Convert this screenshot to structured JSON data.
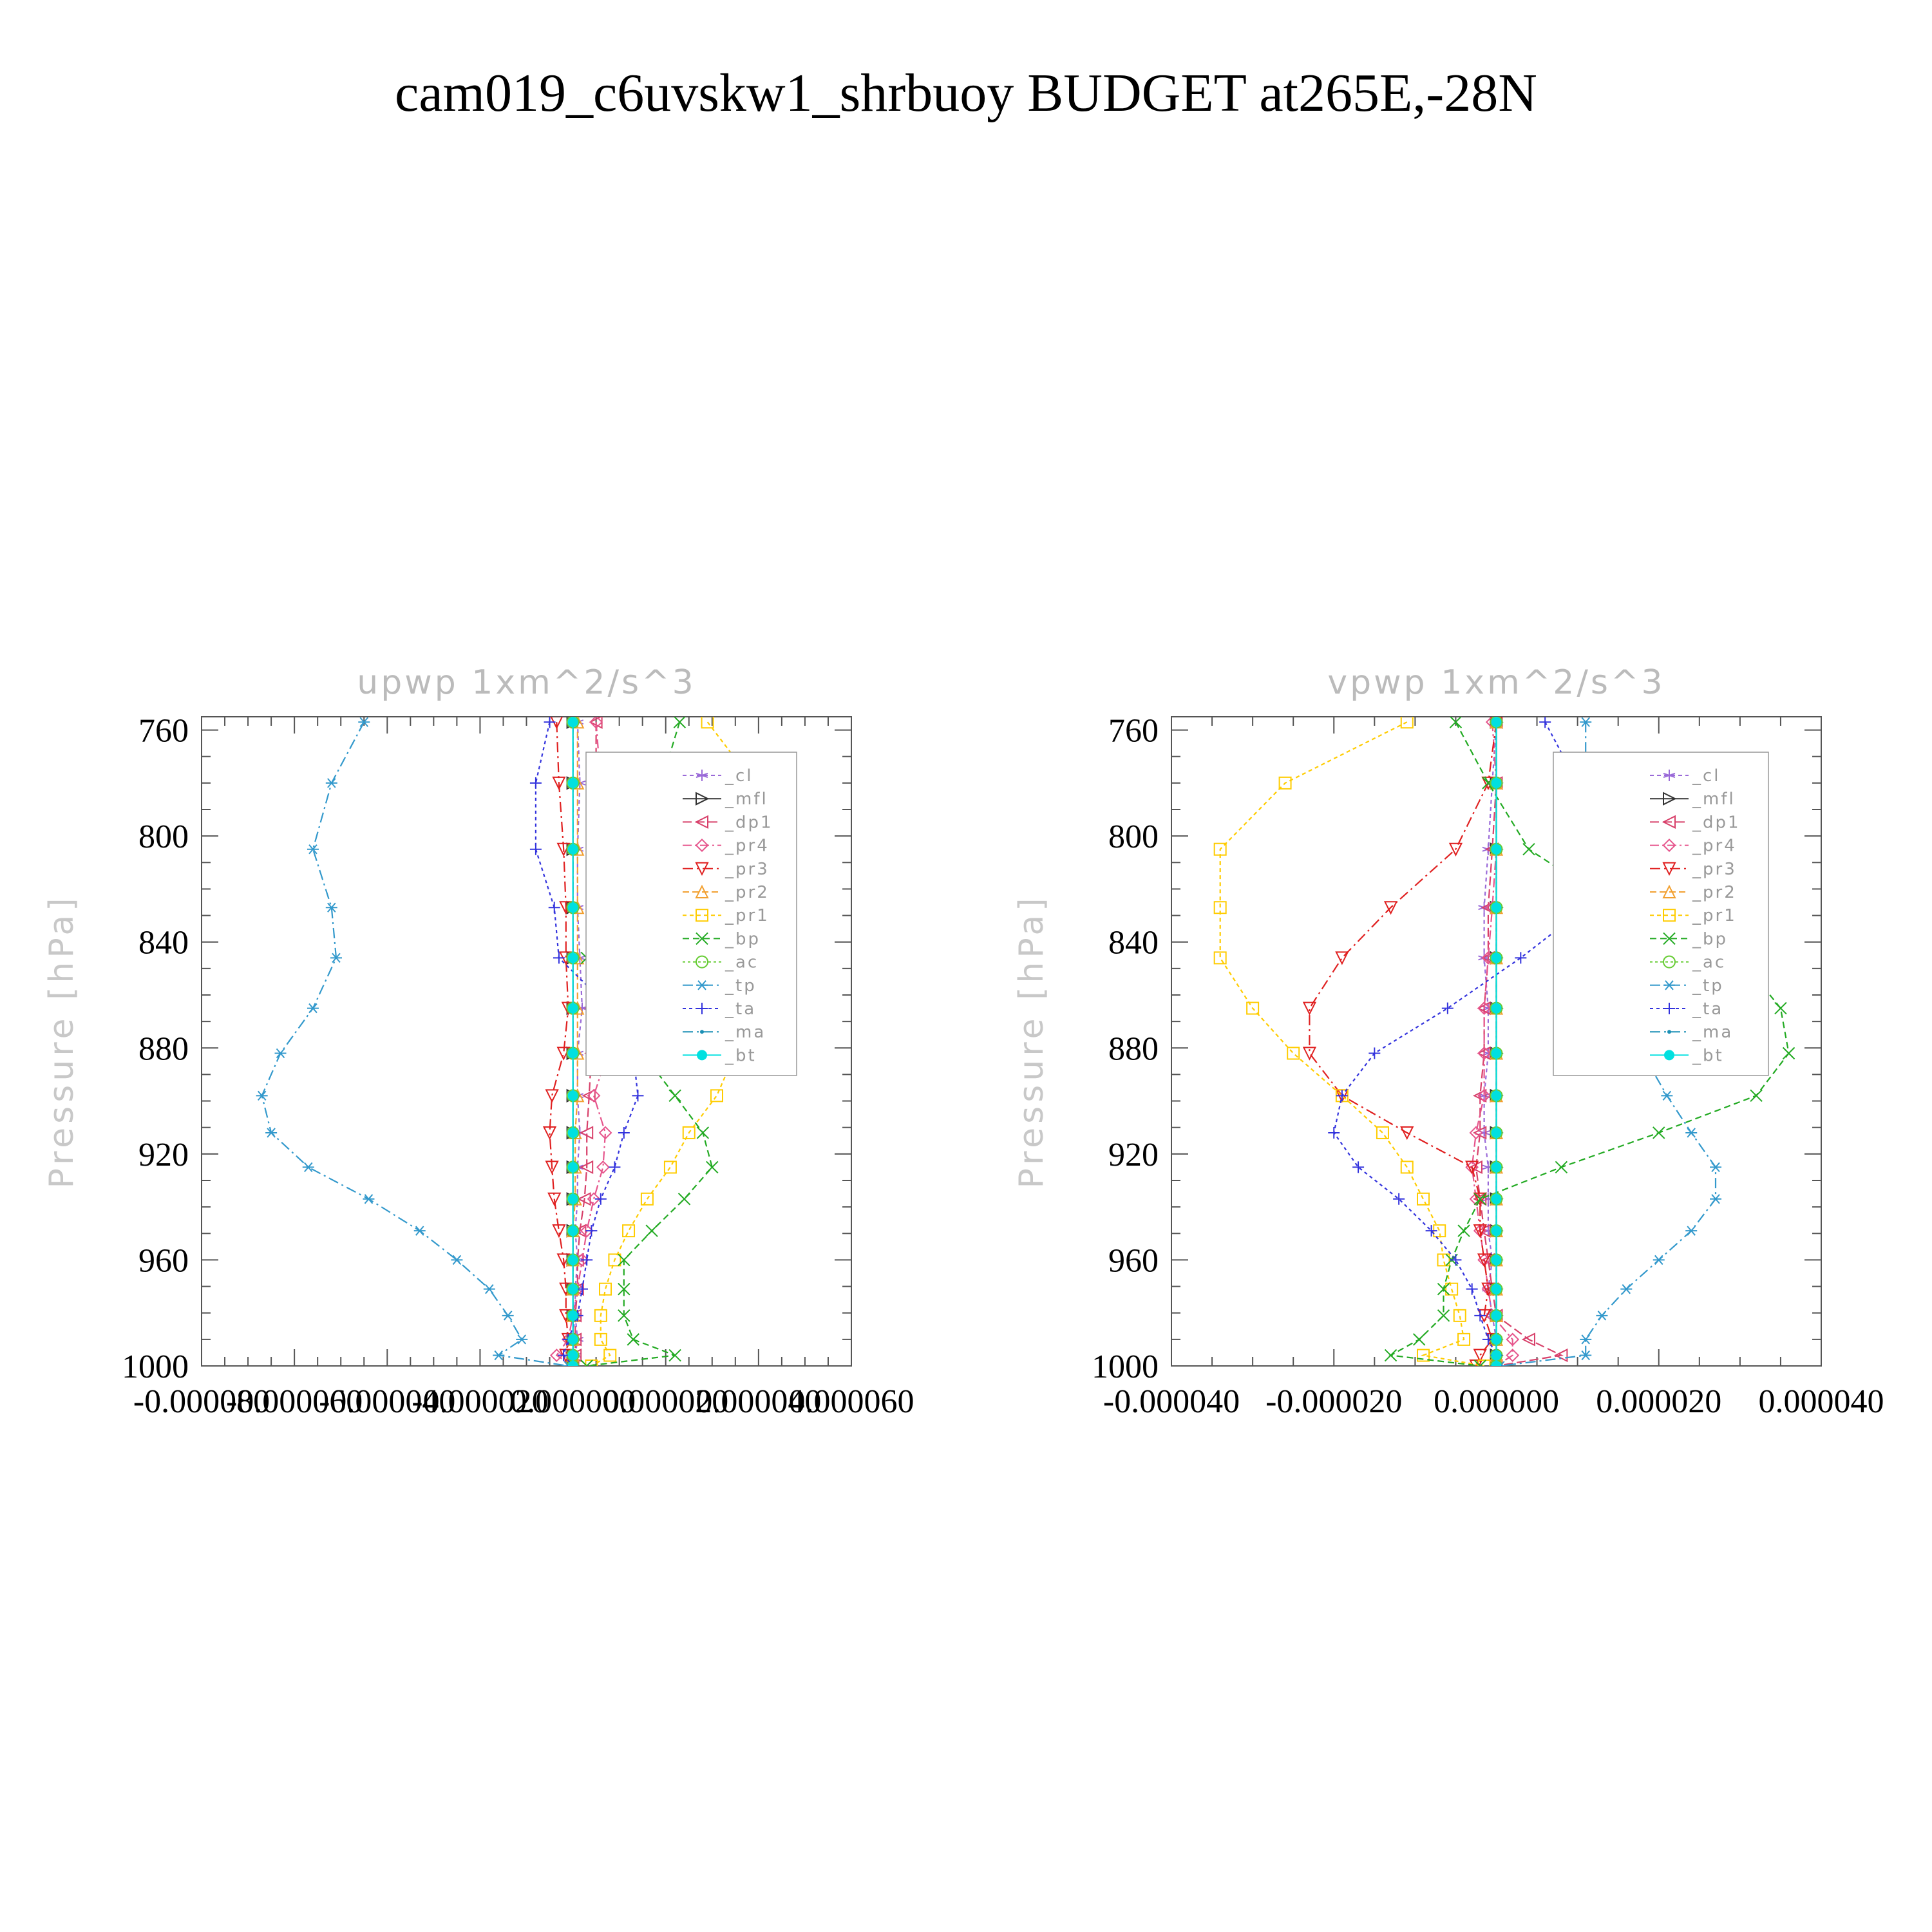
{
  "figure": {
    "title": "cam019_c6uvskw1_shrbuoy  BUDGET at265E,-28N"
  },
  "legend_entries": [
    {
      "label": "_cl",
      "color": "#9a6ad8",
      "marker": "star",
      "dash": "6,5"
    },
    {
      "label": "_mfl",
      "color": "#333333",
      "marker": "tri-right",
      "dash": ""
    },
    {
      "label": "_dp1",
      "color": "#d8406a",
      "marker": "tri-left",
      "dash": "14,6"
    },
    {
      "label": "_pr4",
      "color": "#e6558c",
      "marker": "diamond",
      "dash": "14,5,3,5"
    },
    {
      "label": "_pr3",
      "color": "#e02020",
      "marker": "tri-down",
      "dash": "16,6,3,6"
    },
    {
      "label": "_pr2",
      "color": "#f2a030",
      "marker": "tri-up",
      "dash": "10,5"
    },
    {
      "label": "_pr1",
      "color": "#ffcc00",
      "marker": "square",
      "dash": "6,5"
    },
    {
      "label": "_bp",
      "color": "#22aa22",
      "marker": "x",
      "dash": "10,6"
    },
    {
      "label": "_ac",
      "color": "#66cc33",
      "marker": "circle",
      "dash": "4,4"
    },
    {
      "label": "_tp",
      "color": "#3399cc",
      "marker": "asterisk",
      "dash": "16,6,3,6"
    },
    {
      "label": "_ta",
      "color": "#3333dd",
      "marker": "plus",
      "dash": "5,5"
    },
    {
      "label": "_ma",
      "color": "#1a8fb5",
      "marker": "dot",
      "dash": "16,6,3,6"
    },
    {
      "label": "_bt",
      "color": "#00e0e0",
      "marker": "filled-circle",
      "dash": ""
    }
  ],
  "chart_data": [
    {
      "type": "line",
      "title": "upwp   1xm^2/s^3",
      "ylabel": "Pressure [hPa]",
      "xlabel": "",
      "xlim": [
        -8e-05,
        6e-05
      ],
      "ylim": [
        1000,
        755
      ],
      "x_ticks": [
        -8e-05,
        -6e-05,
        -4e-05,
        -2e-05,
        0.0,
        2e-05,
        4e-05,
        6e-05
      ],
      "x_tick_labels": [
        "-0.000080",
        "-0.000060",
        "-0.000040",
        "-0.000020",
        "0.000000",
        "0.000020",
        "0.000040",
        "0.000060"
      ],
      "y_ticks": [
        760,
        800,
        840,
        880,
        920,
        960,
        1000
      ],
      "y_tick_labels": [
        "760",
        "800",
        "840",
        "880",
        "920",
        "960",
        "1000"
      ],
      "grid": false,
      "legend_position": "top-right",
      "levels": [
        757,
        780,
        805,
        827,
        846,
        865,
        882,
        898,
        912,
        925,
        937,
        949,
        960,
        971,
        981,
        990,
        996,
        1000
      ],
      "series": [
        {
          "name": "_cl",
          "x": [
            1e-06,
            1.5e-06,
            1e-06,
            1e-06,
            1.5e-06,
            2e-06,
            1e-06,
            1e-06,
            1.5e-06,
            1e-06,
            1e-06,
            5e-07,
            1e-06,
            5e-07,
            5e-07,
            1e-06,
            5e-07,
            0.0
          ]
        },
        {
          "name": "_mfl",
          "x": [
            0.0,
            0.0,
            0.0,
            0.0,
            0.0,
            0.0,
            0.0,
            0.0,
            0.0,
            0.0,
            0.0,
            0.0,
            0.0,
            0.0,
            0.0,
            0.0,
            0.0,
            0.0
          ]
        },
        {
          "name": "_dp1",
          "x": [
            5e-06,
            5e-06,
            6e-06,
            5.5e-06,
            5e-06,
            4e-06,
            4e-06,
            3.5e-06,
            3e-06,
            3e-06,
            2.5e-06,
            1.5e-06,
            1e-06,
            1e-06,
            5e-07,
            5e-07,
            5e-07,
            0.0
          ]
        },
        {
          "name": "_pr4",
          "x": [
            5e-06,
            6e-06,
            5.5e-06,
            5.5e-06,
            4.5e-06,
            6e-06,
            7.5e-06,
            4.5e-06,
            7e-06,
            6.5e-06,
            4.5e-06,
            3e-06,
            2e-06,
            1e-06,
            0.0,
            -1e-06,
            -3.5e-06,
            0.0
          ]
        },
        {
          "name": "_pr3",
          "x": [
            -3.5e-06,
            -3e-06,
            -2e-06,
            -1.5e-06,
            -1.5e-06,
            -1e-06,
            -2e-06,
            -4.5e-06,
            -5e-06,
            -4.5e-06,
            -4e-06,
            -3e-06,
            -2e-06,
            -1.5e-06,
            -1.5e-06,
            -1e-06,
            -1.5e-06,
            0.0
          ]
        },
        {
          "name": "_pr2",
          "x": [
            1e-06,
            1e-06,
            1e-06,
            1e-06,
            1e-06,
            1e-06,
            1e-06,
            1e-06,
            5e-07,
            5e-07,
            5e-07,
            0.0,
            0.0,
            0.0,
            0.0,
            0.0,
            0.0,
            0.0
          ]
        },
        {
          "name": "_pr1",
          "x": [
            2.9e-05,
            3.9e-05,
            4.6e-05,
            4.6e-05,
            4.3e-05,
            4e-05,
            3.5e-05,
            3.1e-05,
            2.5e-05,
            2.1e-05,
            1.6e-05,
            1.2e-05,
            9e-06,
            7e-06,
            6e-06,
            6e-06,
            8e-06,
            4e-06
          ]
        },
        {
          "name": "_bp",
          "x": [
            2.3e-05,
            1.9e-05,
            1.4e-05,
            7e-06,
            3e-06,
            7e-06,
            1.5e-05,
            2.2e-05,
            2.8e-05,
            3e-05,
            2.4e-05,
            1.7e-05,
            1.1e-05,
            1.1e-05,
            1.1e-05,
            1.3e-05,
            2.2e-05,
            3e-06
          ]
        },
        {
          "name": "_ac",
          "x": [
            0.0,
            0.0,
            0.0,
            0.0,
            0.0,
            0.0,
            0.0,
            0.0,
            0.0,
            0.0,
            0.0,
            0.0,
            0.0,
            0.0,
            0.0,
            0.0,
            0.0,
            0.0
          ]
        },
        {
          "name": "_tp",
          "x": [
            -4.5e-05,
            -5.2e-05,
            -5.6e-05,
            -5.2e-05,
            -5.1e-05,
            -5.6e-05,
            -6.3e-05,
            -6.7e-05,
            -6.5e-05,
            -5.7e-05,
            -4.4e-05,
            -3.3e-05,
            -2.5e-05,
            -1.8e-05,
            -1.4e-05,
            -1.1e-05,
            -1.6e-05,
            -1e-06
          ]
        },
        {
          "name": "_ta",
          "x": [
            -5e-06,
            -8e-06,
            -8e-06,
            -4e-06,
            -3e-06,
            8e-06,
            1.3e-05,
            1.4e-05,
            1.1e-05,
            9e-06,
            6e-06,
            4e-06,
            3e-06,
            2e-06,
            1e-06,
            -1e-06,
            -2e-06,
            0.0
          ]
        },
        {
          "name": "_ma",
          "x": [
            0.0,
            0.0,
            0.0,
            0.0,
            0.0,
            0.0,
            0.0,
            0.0,
            0.0,
            0.0,
            0.0,
            0.0,
            0.0,
            0.0,
            0.0,
            0.0,
            0.0,
            0.0
          ]
        },
        {
          "name": "_bt",
          "x": [
            0.0,
            0.0,
            0.0,
            0.0,
            0.0,
            0.0,
            0.0,
            0.0,
            0.0,
            0.0,
            0.0,
            0.0,
            0.0,
            0.0,
            0.0,
            0.0,
            0.0,
            0.0
          ]
        }
      ]
    },
    {
      "type": "line",
      "title": "vpwp   1xm^2/s^3",
      "ylabel": "Pressure [hPa]",
      "xlabel": "",
      "xlim": [
        -4e-05,
        4e-05
      ],
      "ylim": [
        1000,
        755
      ],
      "x_ticks": [
        -4e-05,
        -2e-05,
        0.0,
        2e-05,
        4e-05
      ],
      "x_tick_labels": [
        "-0.000040",
        "-0.000020",
        "0.000000",
        "0.000020",
        "0.000040"
      ],
      "y_ticks": [
        760,
        800,
        840,
        880,
        920,
        960,
        1000
      ],
      "y_tick_labels": [
        "760",
        "800",
        "840",
        "880",
        "920",
        "960",
        "1000"
      ],
      "grid": false,
      "legend_position": "top-right",
      "levels": [
        757,
        780,
        805,
        827,
        846,
        865,
        882,
        898,
        912,
        925,
        937,
        949,
        960,
        971,
        981,
        990,
        996,
        1000
      ],
      "series": [
        {
          "name": "_cl",
          "x": [
            0.0,
            -5e-07,
            -1e-06,
            -1.5e-06,
            -1.5e-06,
            -1e-06,
            -1e-06,
            -1.5e-06,
            -1.5e-06,
            -1e-06,
            -1e-06,
            -1e-06,
            -5e-07,
            -1e-06,
            -5e-07,
            0.0,
            0.0,
            0.0
          ]
        },
        {
          "name": "_mfl",
          "x": [
            0.0,
            0.0,
            0.0,
            0.0,
            0.0,
            0.0,
            0.0,
            0.0,
            0.0,
            0.0,
            0.0,
            0.0,
            0.0,
            0.0,
            0.0,
            0.0,
            0.0,
            0.0
          ]
        },
        {
          "name": "_dp1",
          "x": [
            0.0,
            0.0,
            -5e-07,
            -1e-06,
            -1e-06,
            -1.5e-06,
            -1.5e-06,
            -2e-06,
            -2e-06,
            -2.5e-06,
            -2e-06,
            -1.5e-06,
            -1e-06,
            -5e-07,
            0.0,
            4e-06,
            8e-06,
            0.0
          ]
        },
        {
          "name": "_pr4",
          "x": [
            -5e-07,
            0.0,
            0.0,
            -5e-07,
            -1e-06,
            -1.5e-06,
            -1.5e-06,
            -1.5e-06,
            -2.5e-06,
            -3e-06,
            -2.5e-06,
            -2e-06,
            -1.5e-06,
            -1e-06,
            -5e-07,
            2e-06,
            2e-06,
            0.0
          ]
        },
        {
          "name": "_pr3",
          "x": [
            0.0,
            -1e-06,
            -5e-06,
            -1.3e-05,
            -1.9e-05,
            -2.3e-05,
            -2.3e-05,
            -1.9e-05,
            -1.1e-05,
            -3e-06,
            -2e-06,
            -2e-06,
            -1.5e-06,
            -1e-06,
            -1.5e-06,
            -5e-07,
            -2e-06,
            -2.5e-06
          ]
        },
        {
          "name": "_pr2",
          "x": [
            0.0,
            0.0,
            0.0,
            0.0,
            0.0,
            0.0,
            0.0,
            0.0,
            0.0,
            0.0,
            0.0,
            0.0,
            0.0,
            0.0,
            0.0,
            0.0,
            0.0,
            0.0
          ]
        },
        {
          "name": "_pr1",
          "x": [
            -1.1e-05,
            -2.6e-05,
            -3.4e-05,
            -3.4e-05,
            -3.4e-05,
            -3e-05,
            -2.5e-05,
            -1.9e-05,
            -1.4e-05,
            -1.1e-05,
            -9e-06,
            -7e-06,
            -6.5e-06,
            -5.5e-06,
            -4.5e-06,
            -4e-06,
            -9e-06,
            -1.5e-06
          ]
        },
        {
          "name": "_bp",
          "x": [
            -5e-06,
            -1e-06,
            4e-06,
            1.5e-05,
            3e-05,
            3.5e-05,
            3.6e-05,
            3.2e-05,
            2e-05,
            8e-06,
            -2e-06,
            -4e-06,
            -5.5e-06,
            -6.5e-06,
            -6.5e-06,
            -9.5e-06,
            -1.3e-05,
            -2e-06
          ]
        },
        {
          "name": "_ac",
          "x": [
            0.0,
            0.0,
            0.0,
            0.0,
            0.0,
            0.0,
            0.0,
            0.0,
            0.0,
            0.0,
            0.0,
            0.0,
            0.0,
            0.0,
            0.0,
            0.0,
            0.0,
            0.0
          ]
        },
        {
          "name": "_tp",
          "x": [
            1.1e-05,
            1.1e-05,
            1.4e-05,
            1.1e-05,
            1.2e-05,
            1.5e-05,
            1.8e-05,
            2.1e-05,
            2.4e-05,
            2.7e-05,
            2.7e-05,
            2.4e-05,
            2e-05,
            1.6e-05,
            1.3e-05,
            1.1e-05,
            1.1e-05,
            5e-07
          ]
        },
        {
          "name": "_ta",
          "x": [
            6e-06,
            1e-05,
            1.5e-05,
            1.1e-05,
            3e-06,
            -6e-06,
            -1.5e-05,
            -1.9e-05,
            -2e-05,
            -1.7e-05,
            -1.2e-05,
            -8e-06,
            -5e-06,
            -3e-06,
            -2e-06,
            -1e-06,
            0.0,
            0.0
          ]
        },
        {
          "name": "_ma",
          "x": [
            0.0,
            0.0,
            0.0,
            0.0,
            0.0,
            0.0,
            0.0,
            0.0,
            0.0,
            0.0,
            0.0,
            0.0,
            0.0,
            0.0,
            0.0,
            0.0,
            0.0,
            0.0
          ]
        },
        {
          "name": "_bt",
          "x": [
            0.0,
            0.0,
            0.0,
            0.0,
            0.0,
            0.0,
            0.0,
            0.0,
            0.0,
            0.0,
            0.0,
            0.0,
            0.0,
            0.0,
            0.0,
            0.0,
            0.0,
            0.0
          ]
        }
      ]
    }
  ]
}
